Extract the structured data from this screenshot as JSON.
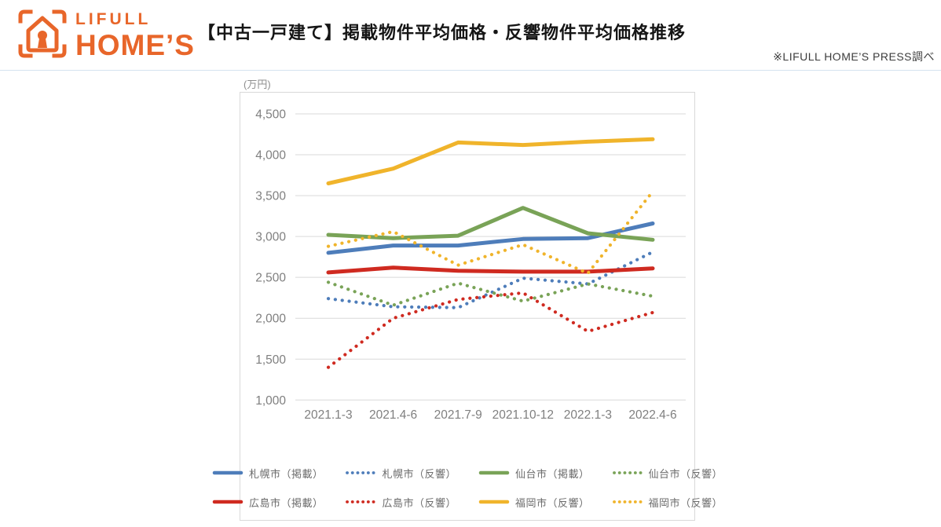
{
  "header": {
    "logo": {
      "brand_top": "LIFULL",
      "brand_bottom": "HOME’S",
      "color": "#e8662a"
    },
    "title": "【中古一戸建て】掲載物件平均価格・反響物件平均価格推移",
    "note": "※LIFULL HOME’S PRESS調べ"
  },
  "chart_data": {
    "type": "line",
    "title": "",
    "unit_label": "(万円)",
    "xlabel": "",
    "ylabel": "万円",
    "categories": [
      "2021.1-3",
      "2021.4-6",
      "2021.7-9",
      "2021.10-12",
      "2022.1-3",
      "2022.4-6"
    ],
    "y_ticks": [
      4500,
      4000,
      3500,
      3000,
      2500,
      2000,
      1500,
      1000
    ],
    "ylim": [
      1000,
      4500
    ],
    "grid": true,
    "legend_position": "bottom",
    "axis_text_color": "#7f7f7f",
    "grid_color": "#d9d9d9",
    "series": [
      {
        "name": "札幌市（掲載）",
        "style": "solid",
        "color": "#4e7dba",
        "values": [
          2800,
          2890,
          2890,
          2970,
          2980,
          3160
        ]
      },
      {
        "name": "札幌市（反響）",
        "style": "dotted",
        "color": "#4e7dba",
        "values": [
          2240,
          2140,
          2130,
          2490,
          2420,
          2810
        ]
      },
      {
        "name": "仙台市（掲載）",
        "style": "solid",
        "color": "#79a357",
        "values": [
          3020,
          2980,
          3010,
          3350,
          3040,
          2960
        ]
      },
      {
        "name": "仙台市（反響）",
        "style": "dotted",
        "color": "#79a357",
        "values": [
          2440,
          2160,
          2430,
          2210,
          2420,
          2270
        ]
      },
      {
        "name": "広島市（掲載）",
        "style": "solid",
        "color": "#cf2a20",
        "values": [
          2560,
          2620,
          2580,
          2570,
          2570,
          2610
        ]
      },
      {
        "name": "広島市（反響）",
        "style": "dotted",
        "color": "#cf2a20",
        "values": [
          1400,
          2000,
          2230,
          2310,
          1840,
          2070
        ]
      },
      {
        "name": "福岡市（反響）",
        "style": "solid",
        "color": "#f0b42b",
        "values": [
          3650,
          3830,
          4150,
          4120,
          4160,
          4190
        ]
      },
      {
        "name": "福岡市（反響）",
        "style": "dotted",
        "color": "#f0b42b",
        "values": [
          2880,
          3060,
          2650,
          2900,
          2550,
          3550
        ]
      }
    ],
    "legend_rows": [
      [
        0,
        1,
        2,
        3
      ],
      [
        4,
        5,
        6,
        7
      ]
    ]
  }
}
